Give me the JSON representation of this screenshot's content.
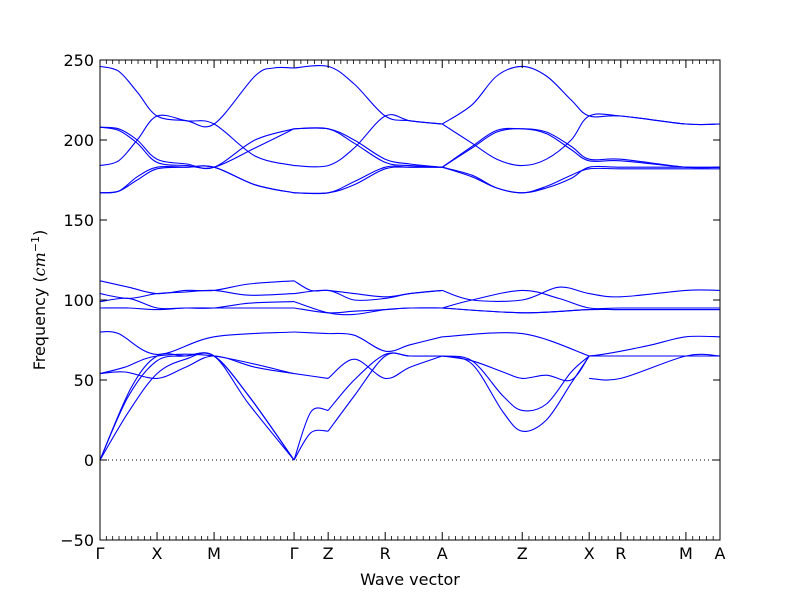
{
  "chart_data": {
    "type": "line",
    "title": "",
    "xlabel": "Wave vector",
    "ylabel_prefix": "Frequency (",
    "ylabel_unit_base": "cm",
    "ylabel_unit_exp": "−1",
    "ylabel_suffix": ")",
    "ylim": [
      -50,
      250
    ],
    "yticks": [
      -50,
      0,
      50,
      100,
      150,
      200,
      250
    ],
    "xlim": [
      0,
      1
    ],
    "zero_line": true,
    "grid": false,
    "series_color": "#0000ff",
    "high_symmetry_points": [
      {
        "label": "Γ",
        "x": 0.0
      },
      {
        "label": "X",
        "x": 0.092
      },
      {
        "label": "M",
        "x": 0.184
      },
      {
        "label": "Γ",
        "x": 0.313
      },
      {
        "label": "Z",
        "x": 0.368
      },
      {
        "label": "R",
        "x": 0.46
      },
      {
        "label": "A",
        "x": 0.552
      },
      {
        "label": "Z",
        "x": 0.681
      },
      {
        "label": "X",
        "x": 0.789
      },
      {
        "label": "R",
        "x": 0.84
      },
      {
        "label": "M",
        "x": 0.945
      },
      {
        "label": "A",
        "x": 1.0
      }
    ],
    "series": [
      {
        "x": [
          0,
          0.046,
          0.092,
          0.138,
          0.184,
          0.24,
          0.313
        ],
        "y": [
          0,
          30,
          54,
          63,
          65,
          35,
          0
        ]
      },
      {
        "x": [
          0,
          0.046,
          0.092,
          0.138,
          0.184,
          0.24,
          0.313
        ],
        "y": [
          0,
          40,
          62,
          65,
          65,
          40,
          0
        ]
      },
      {
        "x": [
          0,
          0.05,
          0.092,
          0.138,
          0.184,
          0.24,
          0.313
        ],
        "y": [
          0,
          45,
          65,
          65,
          65,
          40,
          0
        ]
      },
      {
        "x": [
          0,
          0.04,
          0.092,
          0.138,
          0.184,
          0.25,
          0.313
        ],
        "y": [
          54,
          55,
          51,
          58,
          65,
          58,
          54
        ]
      },
      {
        "x": [
          0,
          0.04,
          0.092,
          0.184,
          0.313
        ],
        "y": [
          54,
          58,
          65,
          65,
          54
        ]
      },
      {
        "x": [
          0,
          0.03,
          0.092,
          0.184,
          0.313
        ],
        "y": [
          80,
          79,
          66,
          77,
          80
        ]
      },
      {
        "x": [
          0.313,
          0.368
        ],
        "y": [
          54,
          51
        ]
      },
      {
        "x": [
          0.313,
          0.34,
          0.368
        ],
        "y": [
          0,
          30,
          31
        ]
      },
      {
        "x": [
          0.313,
          0.34,
          0.368
        ],
        "y": [
          0,
          17,
          18
        ]
      },
      {
        "x": [
          0.313,
          0.368
        ],
        "y": [
          80,
          79
        ]
      },
      {
        "x": [
          0.368,
          0.41,
          0.46,
          0.5,
          0.552
        ],
        "y": [
          18,
          40,
          65,
          65,
          65
        ]
      },
      {
        "x": [
          0.368,
          0.41,
          0.46,
          0.5,
          0.552
        ],
        "y": [
          31,
          50,
          66,
          65,
          65
        ]
      },
      {
        "x": [
          0.368,
          0.41,
          0.46,
          0.5,
          0.552
        ],
        "y": [
          51,
          63,
          51,
          58,
          65
        ]
      },
      {
        "x": [
          0.368,
          0.41,
          0.46,
          0.5,
          0.552
        ],
        "y": [
          79,
          78,
          68,
          72,
          77
        ]
      },
      {
        "x": [
          0.552,
          0.6,
          0.65,
          0.681,
          0.72,
          0.76,
          0.789
        ],
        "y": [
          65,
          60,
          30,
          18,
          25,
          48,
          65
        ]
      },
      {
        "x": [
          0.552,
          0.6,
          0.65,
          0.681,
          0.72,
          0.76,
          0.789
        ],
        "y": [
          65,
          62,
          40,
          31,
          35,
          55,
          65
        ]
      },
      {
        "x": [
          0.552,
          0.6,
          0.65,
          0.681,
          0.72,
          0.76,
          0.789
        ],
        "y": [
          65,
          62,
          55,
          51,
          53,
          50,
          65
        ]
      },
      {
        "x": [
          0.552,
          0.681,
          0.789
        ],
        "y": [
          77,
          79,
          65
        ]
      },
      {
        "x": [
          0.789,
          0.81,
          0.84,
          0.89,
          0.945,
          1.0
        ],
        "y": [
          65,
          66,
          68,
          72,
          77,
          77
        ]
      },
      {
        "x": [
          0.789,
          0.84,
          0.945,
          1.0
        ],
        "y": [
          65,
          65,
          65,
          65
        ]
      },
      {
        "x": [
          0.789,
          0.84,
          0.945,
          1.0
        ],
        "y": [
          51,
          51,
          65,
          65
        ]
      },
      {
        "x": [
          0.789,
          0.84,
          0.945,
          1.0
        ],
        "y": [
          65,
          65,
          65,
          65
        ]
      },
      {
        "x": [
          0,
          0.046,
          0.092,
          0.138,
          0.184,
          0.24,
          0.313
        ],
        "y": [
          112,
          108,
          104,
          106,
          106,
          110,
          112
        ]
      },
      {
        "x": [
          0,
          0.046,
          0.092,
          0.138,
          0.184,
          0.24,
          0.313
        ],
        "y": [
          104,
          101,
          104,
          105,
          106,
          103,
          104
        ]
      },
      {
        "x": [
          0,
          0.046,
          0.092,
          0.138,
          0.184,
          0.24,
          0.313
        ],
        "y": [
          99,
          101,
          95,
          95,
          95,
          98,
          99
        ]
      },
      {
        "x": [
          0,
          0.046,
          0.092,
          0.138,
          0.184,
          0.24,
          0.313
        ],
        "y": [
          95,
          95,
          94,
          95,
          95,
          95,
          95
        ]
      },
      {
        "x": [
          0.313,
          0.34,
          0.368,
          0.41,
          0.46,
          0.5,
          0.552
        ],
        "y": [
          112,
          106,
          106,
          104,
          102,
          104,
          106
        ]
      },
      {
        "x": [
          0.313,
          0.368,
          0.41,
          0.46,
          0.5,
          0.552
        ],
        "y": [
          104,
          106,
          100,
          101,
          104,
          106
        ]
      },
      {
        "x": [
          0.313,
          0.368,
          0.41,
          0.46,
          0.5,
          0.552
        ],
        "y": [
          99,
          92,
          91,
          94,
          95,
          95
        ]
      },
      {
        "x": [
          0.313,
          0.368,
          0.41,
          0.46,
          0.5,
          0.552
        ],
        "y": [
          95,
          92,
          93,
          94,
          95,
          95
        ]
      },
      {
        "x": [
          0.552,
          0.6,
          0.681,
          0.74,
          0.789,
          0.84,
          0.945,
          1.0
        ],
        "y": [
          106,
          100,
          100,
          108,
          104,
          102,
          106,
          106
        ]
      },
      {
        "x": [
          0.552,
          0.6,
          0.681,
          0.74,
          0.789,
          0.84,
          0.945,
          1.0
        ],
        "y": [
          95,
          100,
          106,
          101,
          95,
          95,
          95,
          95
        ]
      },
      {
        "x": [
          0.552,
          0.681,
          0.789,
          0.84,
          0.945,
          1.0
        ],
        "y": [
          95,
          92,
          94,
          94,
          94,
          94
        ]
      },
      {
        "x": [
          0.552,
          0.681,
          0.789,
          0.84,
          0.945,
          1.0
        ],
        "y": [
          95,
          92,
          94,
          94,
          94,
          94
        ]
      },
      {
        "x": [
          0,
          0.03,
          0.06,
          0.092,
          0.14,
          0.184,
          0.25,
          0.28,
          0.313
        ],
        "y": [
          246,
          243,
          230,
          215,
          212,
          210,
          240,
          245,
          245
        ]
      },
      {
        "x": [
          0,
          0.03,
          0.06,
          0.092,
          0.14,
          0.184,
          0.25,
          0.313
        ],
        "y": [
          208,
          207,
          200,
          188,
          185,
          183,
          200,
          207
        ]
      },
      {
        "x": [
          0,
          0.03,
          0.06,
          0.092,
          0.14,
          0.184,
          0.25,
          0.313
        ],
        "y": [
          208,
          206,
          198,
          186,
          184,
          183,
          195,
          207
        ]
      },
      {
        "x": [
          0,
          0.03,
          0.06,
          0.092,
          0.14,
          0.184,
          0.25,
          0.313
        ],
        "y": [
          184,
          187,
          200,
          215,
          212,
          210,
          190,
          184
        ]
      },
      {
        "x": [
          0,
          0.03,
          0.06,
          0.092,
          0.14,
          0.184,
          0.25,
          0.313
        ],
        "y": [
          167,
          168,
          175,
          182,
          183,
          183,
          172,
          167
        ]
      },
      {
        "x": [
          0,
          0.03,
          0.06,
          0.092,
          0.14,
          0.184,
          0.25,
          0.313
        ],
        "y": [
          167,
          168,
          177,
          183,
          183,
          183,
          172,
          167
        ]
      },
      {
        "x": [
          0.313,
          0.368,
          0.41,
          0.46,
          0.5,
          0.552
        ],
        "y": [
          245,
          246,
          235,
          215,
          212,
          210
        ]
      },
      {
        "x": [
          0.313,
          0.368,
          0.41,
          0.46,
          0.5,
          0.552
        ],
        "y": [
          207,
          207,
          200,
          188,
          185,
          183
        ]
      },
      {
        "x": [
          0.313,
          0.368,
          0.41,
          0.46,
          0.5,
          0.552
        ],
        "y": [
          207,
          207,
          198,
          186,
          184,
          183
        ]
      },
      {
        "x": [
          0.313,
          0.368,
          0.41,
          0.46,
          0.5,
          0.552
        ],
        "y": [
          184,
          184,
          195,
          215,
          212,
          210
        ]
      },
      {
        "x": [
          0.313,
          0.368,
          0.41,
          0.46,
          0.5,
          0.552
        ],
        "y": [
          167,
          167,
          172,
          182,
          183,
          183
        ]
      },
      {
        "x": [
          0.313,
          0.368,
          0.41,
          0.46,
          0.5,
          0.552
        ],
        "y": [
          167,
          167,
          174,
          183,
          183,
          183
        ]
      },
      {
        "x": [
          0.552,
          0.6,
          0.64,
          0.681,
          0.72,
          0.76,
          0.789,
          0.84,
          0.945,
          1.0
        ],
        "y": [
          210,
          222,
          240,
          246,
          240,
          225,
          215,
          215,
          210,
          210
        ]
      },
      {
        "x": [
          0.552,
          0.6,
          0.64,
          0.681,
          0.72,
          0.76,
          0.789,
          0.84,
          0.945,
          1.0
        ],
        "y": [
          210,
          198,
          188,
          184,
          188,
          200,
          215,
          215,
          210,
          210
        ]
      },
      {
        "x": [
          0.552,
          0.6,
          0.64,
          0.681,
          0.72,
          0.76,
          0.789,
          0.84,
          0.945,
          1.0
        ],
        "y": [
          183,
          196,
          206,
          207,
          205,
          196,
          188,
          188,
          183,
          183
        ]
      },
      {
        "x": [
          0.552,
          0.6,
          0.64,
          0.681,
          0.72,
          0.76,
          0.789,
          0.84,
          0.945,
          1.0
        ],
        "y": [
          183,
          195,
          205,
          207,
          204,
          194,
          187,
          187,
          183,
          183
        ]
      },
      {
        "x": [
          0.552,
          0.6,
          0.64,
          0.681,
          0.72,
          0.76,
          0.789,
          0.84,
          0.945,
          1.0
        ],
        "y": [
          183,
          178,
          170,
          167,
          170,
          176,
          183,
          183,
          183,
          183
        ]
      },
      {
        "x": [
          0.552,
          0.6,
          0.64,
          0.681,
          0.72,
          0.76,
          0.789,
          0.84,
          0.945,
          1.0
        ],
        "y": [
          183,
          177,
          170,
          167,
          171,
          178,
          182,
          182,
          182,
          182
        ]
      }
    ]
  }
}
